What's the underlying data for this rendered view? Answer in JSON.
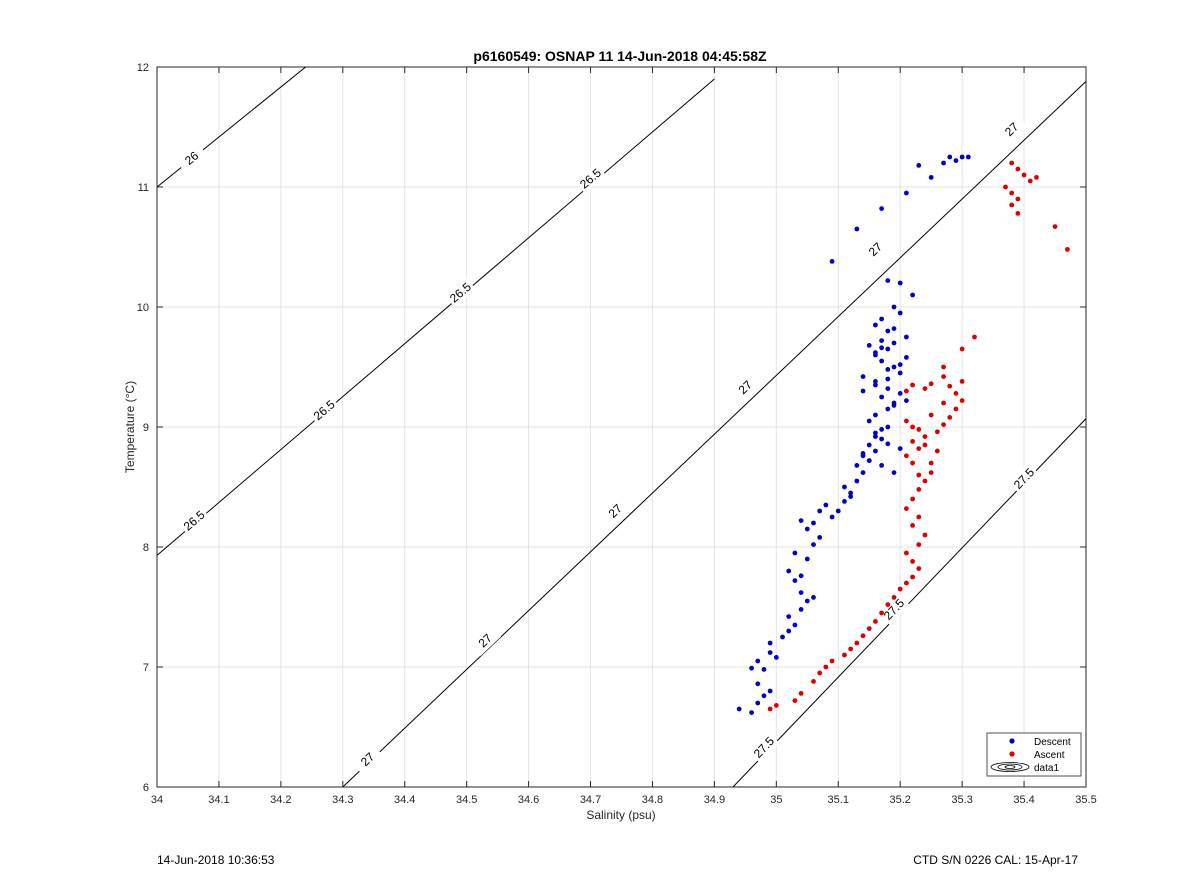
{
  "footer": {
    "left": "14-Jun-2018 10:36:53",
    "right": "CTD S/N 0226  CAL: 15-Apr-17"
  },
  "chart_data": {
    "type": "scatter",
    "title": "p6160549: OSNAP 11 14-Jun-2018 04:45:58Z",
    "xlabel": "Salinity (psu)",
    "ylabel": "Temperature (°C)",
    "xlim": [
      34,
      35.5
    ],
    "ylim": [
      6,
      12
    ],
    "x_ticks": [
      "34",
      "34.1",
      "34.2",
      "34.3",
      "34.4",
      "34.5",
      "34.6",
      "34.7",
      "34.8",
      "34.9",
      "35",
      "35.1",
      "35.2",
      "35.3",
      "35.4",
      "35.5"
    ],
    "y_ticks": [
      "6",
      "7",
      "8",
      "9",
      "10",
      "11",
      "12"
    ],
    "grid": true,
    "legend": {
      "location": "bottom-right",
      "entries": [
        "Descent",
        "Ascent",
        "data1"
      ]
    },
    "colors": {
      "descent": "#0000cc",
      "ascent": "#dd0000",
      "contour": "#000000"
    },
    "density_contours": [
      {
        "level": "26",
        "line": [
          [
            34,
            11.0
          ],
          [
            34.24,
            12.0
          ]
        ],
        "labels": [
          [
            34.056,
            11.24
          ]
        ]
      },
      {
        "level": "26.5",
        "line": [
          [
            34,
            7.93
          ],
          [
            34.9,
            11.9
          ]
        ],
        "labels": [
          [
            34.06,
            8.22
          ],
          [
            34.27,
            9.14
          ],
          [
            34.49,
            10.12
          ],
          [
            34.7,
            11.07
          ]
        ]
      },
      {
        "level": "27",
        "line": [
          [
            34.3,
            6.0
          ],
          [
            35.5,
            11.88
          ]
        ],
        "labels": [
          [
            34.34,
            6.23
          ],
          [
            34.53,
            7.22
          ],
          [
            34.74,
            8.3
          ],
          [
            34.95,
            9.33
          ],
          [
            35.16,
            10.48
          ],
          [
            35.38,
            11.48
          ]
        ]
      },
      {
        "level": "27.5",
        "line": [
          [
            34.93,
            6.0
          ],
          [
            35.5,
            9.07
          ]
        ],
        "labels": [
          [
            34.98,
            6.33
          ],
          [
            35.19,
            7.48
          ],
          [
            35.4,
            8.57
          ]
        ]
      }
    ],
    "series": [
      {
        "name": "Descent",
        "x": [
          34.94,
          34.96,
          34.97,
          34.98,
          34.97,
          34.99,
          34.98,
          34.96,
          34.97,
          34.99,
          35.0,
          34.99,
          35.01,
          35.02,
          35.03,
          35.02,
          35.04,
          35.05,
          35.04,
          35.06,
          35.03,
          35.02,
          35.04,
          35.05,
          35.03,
          35.06,
          35.07,
          35.05,
          35.04,
          35.06,
          35.07,
          35.08,
          35.09,
          35.1,
          35.11,
          35.12,
          35.11,
          35.13,
          35.12,
          35.14,
          35.13,
          35.15,
          35.14,
          35.16,
          35.15,
          35.17,
          35.16,
          35.18,
          35.15,
          35.16,
          35.18,
          35.19,
          35.17,
          35.14,
          35.16,
          35.18,
          35.2,
          35.19,
          35.17,
          35.16,
          35.18,
          35.19,
          35.21,
          35.18,
          35.16,
          35.17,
          35.2,
          35.19,
          35.22,
          35.2,
          35.18,
          35.17,
          35.15,
          35.14,
          35.16,
          35.18,
          35.2,
          35.21,
          35.19,
          35.17,
          35.16,
          35.18,
          35.2,
          35.14,
          35.15,
          35.17,
          35.19,
          35.21,
          35.2,
          35.18,
          35.16,
          35.17,
          35.19,
          35.09,
          35.13,
          35.17,
          35.21,
          35.23,
          35.25,
          35.27,
          35.28,
          35.29,
          35.3,
          35.31
        ],
        "y": [
          6.65,
          6.62,
          6.7,
          6.76,
          6.86,
          6.8,
          6.98,
          6.99,
          7.05,
          7.12,
          7.08,
          7.2,
          7.25,
          7.3,
          7.35,
          7.42,
          7.48,
          7.55,
          7.62,
          7.58,
          7.72,
          7.8,
          7.76,
          7.9,
          7.95,
          8.02,
          8.08,
          8.15,
          8.22,
          8.2,
          8.3,
          8.35,
          8.25,
          8.3,
          8.38,
          8.45,
          8.5,
          8.55,
          8.42,
          8.62,
          8.68,
          8.72,
          8.78,
          8.8,
          8.85,
          8.9,
          8.95,
          9.0,
          9.05,
          9.1,
          9.15,
          9.2,
          9.25,
          9.3,
          9.35,
          9.4,
          9.45,
          9.5,
          9.55,
          9.6,
          9.65,
          9.7,
          9.75,
          9.8,
          9.85,
          9.9,
          9.95,
          10.0,
          10.1,
          10.2,
          10.22,
          9.72,
          9.68,
          9.42,
          9.38,
          9.32,
          9.28,
          9.22,
          9.18,
          8.98,
          8.92,
          8.86,
          8.82,
          8.76,
          8.72,
          8.68,
          8.62,
          9.58,
          9.52,
          9.48,
          9.62,
          9.66,
          9.82,
          10.38,
          10.65,
          10.82,
          10.95,
          11.18,
          11.08,
          11.2,
          11.25,
          11.22,
          11.25,
          11.25
        ]
      },
      {
        "name": "Ascent",
        "x": [
          34.99,
          35.0,
          35.03,
          35.04,
          35.06,
          35.07,
          35.08,
          35.09,
          35.11,
          35.12,
          35.13,
          35.14,
          35.15,
          35.16,
          35.17,
          35.18,
          35.19,
          35.2,
          35.21,
          35.22,
          35.23,
          35.22,
          35.21,
          35.23,
          35.24,
          35.22,
          35.23,
          35.21,
          35.22,
          35.23,
          35.24,
          35.25,
          35.22,
          35.21,
          35.23,
          35.22,
          35.24,
          35.26,
          35.27,
          35.28,
          35.29,
          35.3,
          35.29,
          35.28,
          35.3,
          35.27,
          35.25,
          35.24,
          35.22,
          35.21,
          35.23,
          35.25,
          35.26,
          35.24,
          35.27,
          35.3,
          35.32,
          35.21,
          35.22,
          35.23,
          35.25,
          35.27,
          35.38,
          35.39,
          35.4,
          35.41,
          35.42,
          35.39,
          35.38,
          35.37,
          35.39,
          35.38,
          35.45,
          35.47
        ],
        "y": [
          6.65,
          6.68,
          6.72,
          6.78,
          6.88,
          6.95,
          7.0,
          7.05,
          7.1,
          7.15,
          7.2,
          7.26,
          7.32,
          7.38,
          7.45,
          7.52,
          7.58,
          7.65,
          7.7,
          7.75,
          7.82,
          7.88,
          7.95,
          8.02,
          8.1,
          8.18,
          8.25,
          8.32,
          8.4,
          8.48,
          8.55,
          8.62,
          8.7,
          8.76,
          8.82,
          8.88,
          8.92,
          8.96,
          9.02,
          9.08,
          9.15,
          9.22,
          9.28,
          9.34,
          9.38,
          9.42,
          9.36,
          9.32,
          9.35,
          9.3,
          8.6,
          8.7,
          8.8,
          8.85,
          9.5,
          9.65,
          9.75,
          9.05,
          9.0,
          8.98,
          9.1,
          9.2,
          11.2,
          11.15,
          11.1,
          11.05,
          11.08,
          10.9,
          10.95,
          11.0,
          10.78,
          10.85,
          10.67,
          10.48
        ]
      }
    ]
  }
}
